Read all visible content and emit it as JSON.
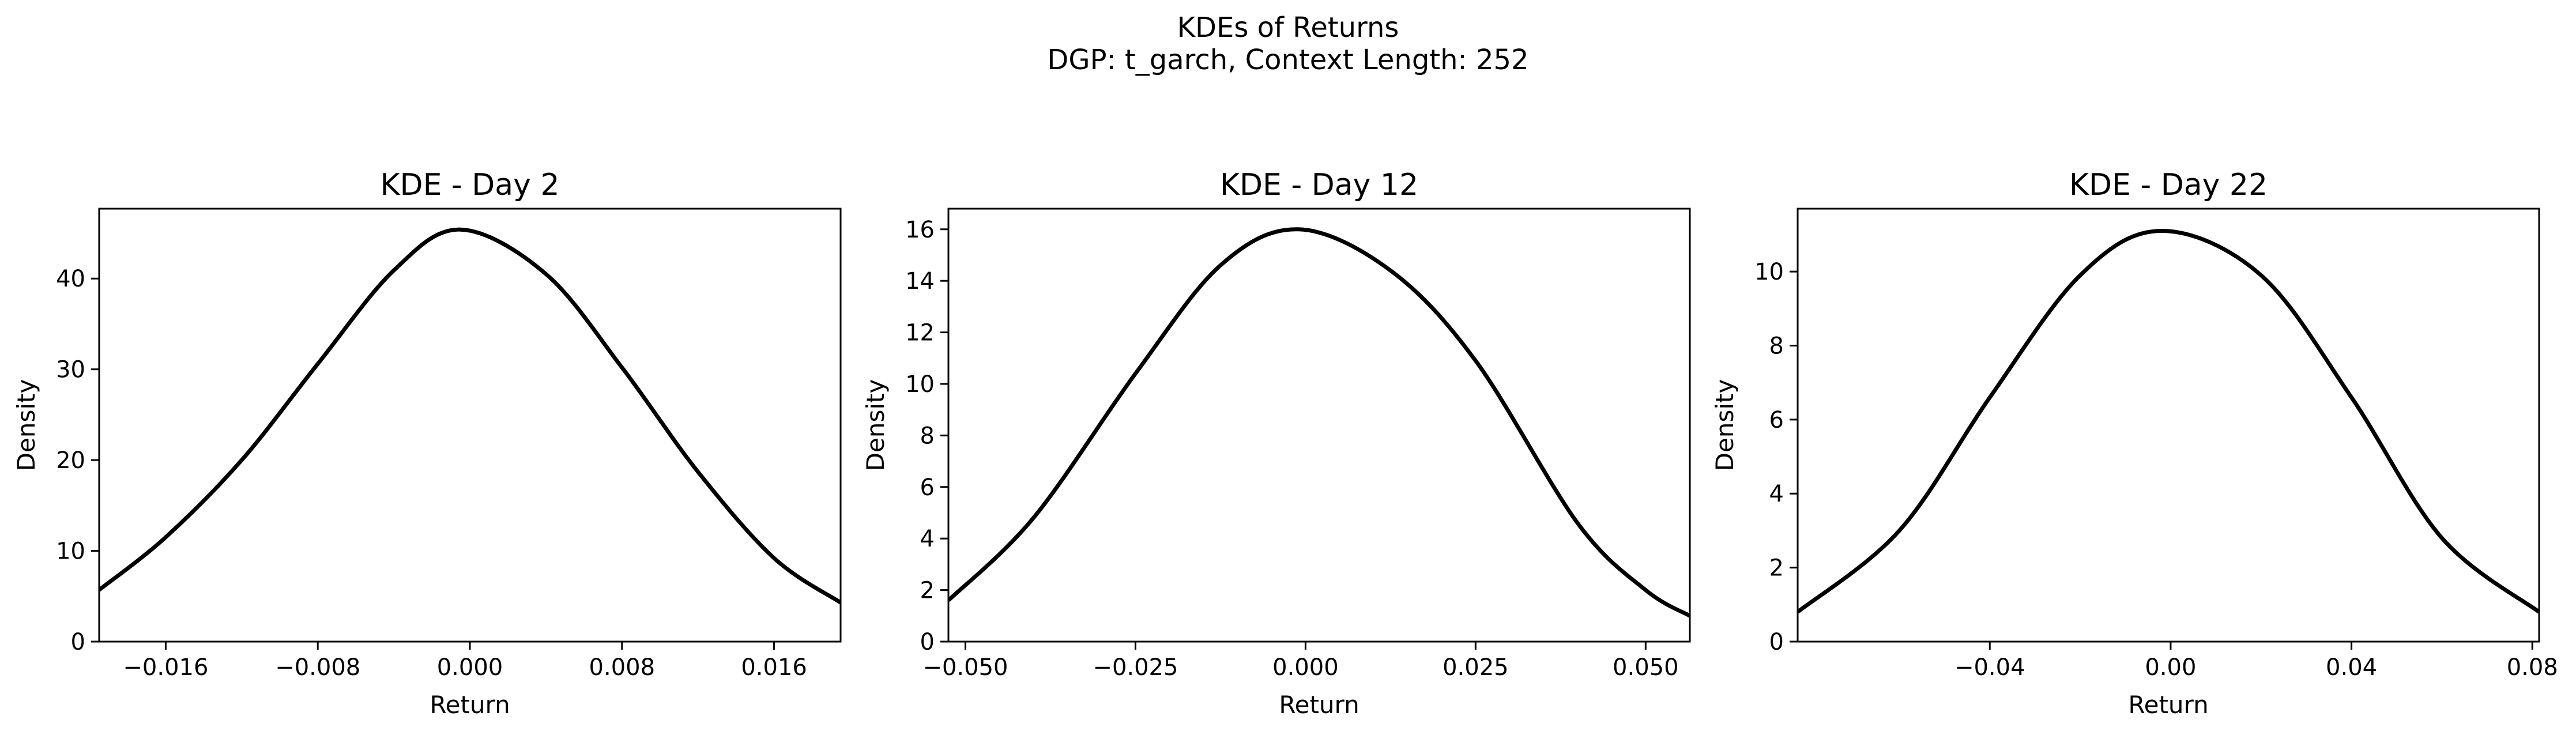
{
  "figure": {
    "suptitle_line1": "KDEs of Returns",
    "suptitle_line2": "DGP: t_garch, Context Length: 252"
  },
  "chart_data": [
    {
      "type": "line",
      "title": "KDE - Day 2",
      "xlabel": "Return",
      "ylabel": "Density",
      "xlim": [
        -0.0195,
        0.0195
      ],
      "ylim": [
        0,
        47.7
      ],
      "xticks": [
        -0.016,
        -0.008,
        0.0,
        0.008,
        0.016
      ],
      "xtick_labels": [
        "−0.016",
        "−0.008",
        "0.000",
        "0.008",
        "0.016"
      ],
      "yticks": [
        0,
        10,
        20,
        30,
        40
      ],
      "ytick_labels": [
        "0",
        "10",
        "20",
        "30",
        "40"
      ],
      "series": [
        {
          "color": "#000000",
          "x": [
            -0.0195,
            -0.016,
            -0.012,
            -0.008,
            -0.004,
            -0.0005,
            0.004,
            0.008,
            0.012,
            0.016,
            0.0195
          ],
          "y": [
            5.7,
            11.5,
            20.0,
            30.6,
            40.9,
            45.4,
            40.5,
            30.2,
            18.7,
            9.2,
            4.3
          ]
        }
      ]
    },
    {
      "type": "line",
      "title": "KDE - Day 12",
      "xlabel": "Return",
      "ylabel": "Density",
      "xlim": [
        -0.0525,
        0.0565
      ],
      "ylim": [
        0,
        16.8
      ],
      "xticks": [
        -0.05,
        -0.025,
        0.0,
        0.025,
        0.05
      ],
      "xtick_labels": [
        "−0.050",
        "−0.025",
        "0.000",
        "0.025",
        "0.050"
      ],
      "yticks": [
        0,
        2,
        4,
        6,
        8,
        10,
        12,
        14,
        16
      ],
      "ytick_labels": [
        "0",
        "2",
        "4",
        "6",
        "8",
        "10",
        "12",
        "14",
        "16"
      ],
      "series": [
        {
          "color": "#000000",
          "x": [
            -0.0525,
            -0.04,
            -0.025,
            -0.0125,
            -0.001,
            0.0125,
            0.025,
            0.04,
            0.05,
            0.0565
          ],
          "y": [
            1.6,
            4.8,
            10.4,
            14.6,
            16.0,
            14.4,
            10.9,
            4.6,
            2.0,
            1.0
          ]
        }
      ]
    },
    {
      "type": "line",
      "title": "KDE - Day 22",
      "xlabel": "Return",
      "ylabel": "Density",
      "xlim": [
        -0.0825,
        0.0815
      ],
      "ylim": [
        0,
        11.7
      ],
      "xticks": [
        -0.04,
        0.0,
        0.04,
        0.08
      ],
      "xtick_labels": [
        "−0.04",
        "0.00",
        "0.04",
        "0.08"
      ],
      "yticks": [
        0,
        2,
        4,
        6,
        8,
        10
      ],
      "ytick_labels": [
        "0",
        "2",
        "4",
        "6",
        "8",
        "10"
      ],
      "series": [
        {
          "color": "#000000",
          "x": [
            -0.0825,
            -0.06,
            -0.04,
            -0.02,
            -0.002,
            0.02,
            0.04,
            0.06,
            0.0815
          ],
          "y": [
            0.8,
            3.0,
            6.6,
            9.9,
            11.1,
            9.9,
            6.6,
            2.8,
            0.8
          ]
        }
      ]
    }
  ]
}
